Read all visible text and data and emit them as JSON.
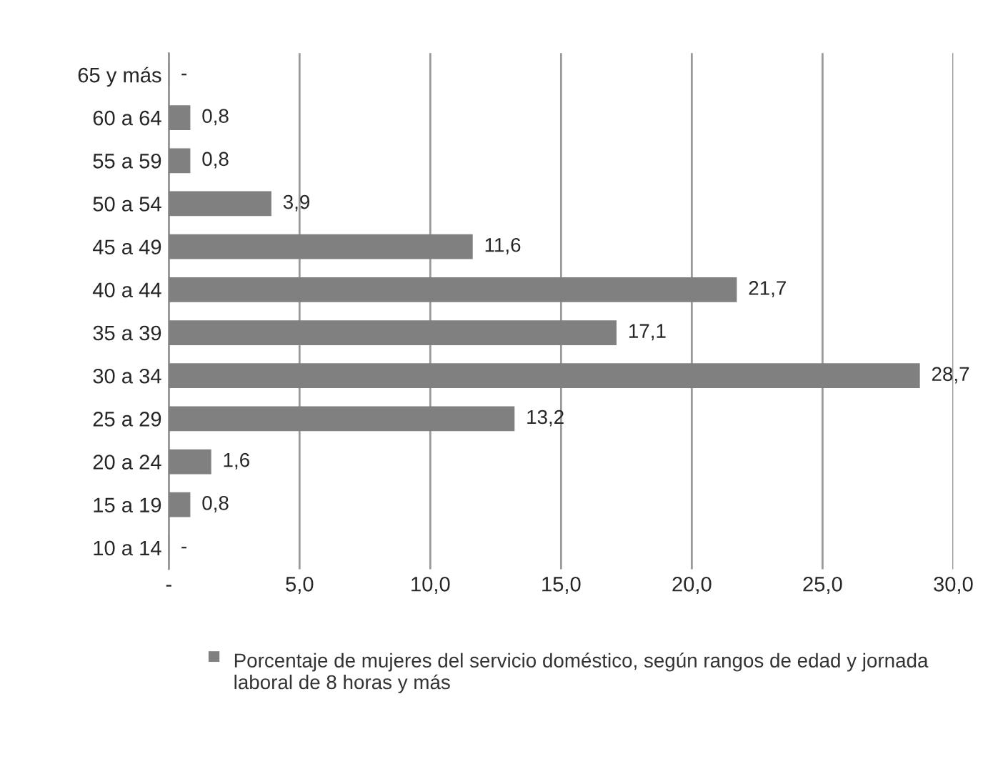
{
  "chart_data": {
    "type": "bar",
    "orientation": "horizontal",
    "categories": [
      "65 y más",
      "60 a 64",
      "55 a 59",
      "50 a 54",
      "45 a 49",
      "40 a 44",
      "35 a 39",
      "30 a 34",
      "25 a 29",
      "20 a 24",
      "15 a 19",
      "10 a 14"
    ],
    "series": [
      {
        "name": "Porcentaje de mujeres del servicio doméstico, según rangos de edad y jornada laboral de 8 horas y más",
        "color": "#808080",
        "values": [
          0,
          0.8,
          0.8,
          3.9,
          11.6,
          21.7,
          17.1,
          28.7,
          13.2,
          1.6,
          0.8,
          0
        ],
        "value_labels": [
          "-",
          "0,8",
          "0,8",
          "3,9",
          "11,6",
          "21,7",
          "17,1",
          "28,7",
          "13,2",
          "1,6",
          "0,8",
          "-"
        ]
      }
    ],
    "xlim": [
      0,
      30
    ],
    "xticks": [
      {
        "value": 0,
        "label": "-"
      },
      {
        "value": 5,
        "label": "5,0"
      },
      {
        "value": 10,
        "label": "10,0"
      },
      {
        "value": 15,
        "label": "15,0"
      },
      {
        "value": 20,
        "label": "20,0"
      },
      {
        "value": 25,
        "label": "25,0"
      },
      {
        "value": 30,
        "label": "30,0"
      }
    ],
    "grid": "x",
    "legend": "bottom"
  }
}
